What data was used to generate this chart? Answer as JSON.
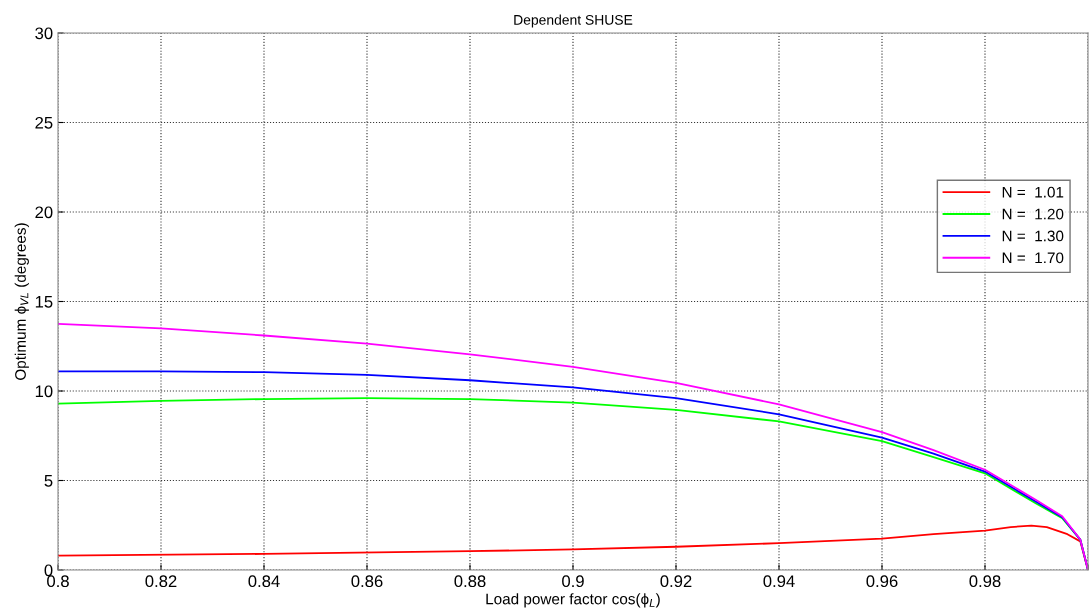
{
  "chart_data": {
    "type": "line",
    "title": "Dependent SHUSE",
    "xlabel": "Load power factor cos(ϕ$_{L}$)",
    "ylabel": "Optimum ϕ$_{VL}$ (degrees)",
    "xlim": [
      0.8,
      1
    ],
    "ylim": [
      0,
      30
    ],
    "xticks": [
      0.8,
      0.82,
      0.84,
      0.86,
      0.88,
      0.9,
      0.92,
      0.94,
      0.96,
      0.98,
      {
        "value": 1,
        "label": null
      }
    ],
    "yticks": [
      0,
      5,
      10,
      15,
      20,
      25,
      30
    ],
    "grid": true,
    "legend": "right",
    "line_style": "solid",
    "series": [
      {
        "name": "N =  1.01",
        "color": "#ff0000",
        "x": [
          0.8,
          0.84,
          0.88,
          0.9,
          0.92,
          0.94,
          0.96,
          0.97,
          0.98,
          0.985,
          0.989,
          0.992,
          0.996,
          0.9985,
          1
        ],
        "values": [
          0.8,
          0.9,
          1.05,
          1.15,
          1.3,
          1.5,
          1.75,
          2.0,
          2.2,
          2.4,
          2.48,
          2.4,
          2.0,
          1.6,
          0
        ]
      },
      {
        "name": "N =  1.20",
        "color": "#00ff00",
        "x": [
          0.8,
          0.82,
          0.84,
          0.86,
          0.88,
          0.9,
          0.92,
          0.94,
          0.96,
          0.97,
          0.98,
          0.99,
          0.995,
          0.9985,
          1
        ],
        "values": [
          9.3,
          9.45,
          9.55,
          9.6,
          9.55,
          9.35,
          8.95,
          8.3,
          7.2,
          6.3,
          5.4,
          3.7,
          2.9,
          1.7,
          0
        ]
      },
      {
        "name": "N =  1.30",
        "color": "#0000ff",
        "x": [
          0.8,
          0.82,
          0.84,
          0.86,
          0.88,
          0.9,
          0.92,
          0.94,
          0.96,
          0.97,
          0.98,
          0.99,
          0.995,
          0.9985,
          1
        ],
        "values": [
          11.1,
          11.1,
          11.05,
          10.9,
          10.6,
          10.2,
          9.6,
          8.7,
          7.4,
          6.5,
          5.5,
          3.8,
          2.95,
          1.7,
          0
        ]
      },
      {
        "name": "N =  1.70",
        "color": "#ff00ff",
        "x": [
          0.8,
          0.82,
          0.84,
          0.86,
          0.88,
          0.9,
          0.92,
          0.94,
          0.96,
          0.97,
          0.98,
          0.99,
          0.995,
          0.9985,
          1
        ],
        "values": [
          13.75,
          13.5,
          13.1,
          12.65,
          12.05,
          11.35,
          10.45,
          9.25,
          7.7,
          6.7,
          5.6,
          3.9,
          3.0,
          1.7,
          0
        ]
      }
    ]
  }
}
